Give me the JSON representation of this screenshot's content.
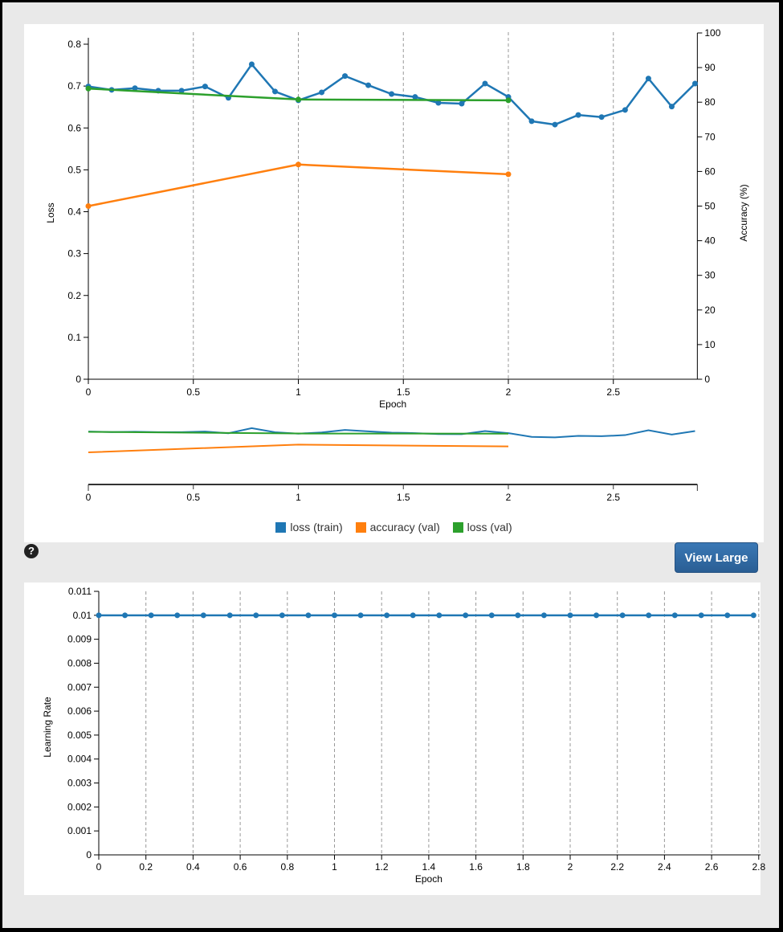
{
  "help_icon": "question-circle-icon",
  "view_large_label": "View Large",
  "colors": {
    "loss_train": "#1f77b4",
    "accuracy_val": "#ff7f0e",
    "loss_val": "#2ca02c"
  },
  "legend": [
    "loss (train)",
    "accuracy (val)",
    "loss (val)"
  ],
  "chart_data": [
    {
      "type": "line",
      "xlabel": "Epoch",
      "ylabel": "Loss",
      "y2label": "Accuracy (%)",
      "xlim": [
        0,
        2.9
      ],
      "ylim": [
        0,
        0.8
      ],
      "y2lim": [
        0,
        100
      ],
      "xticks": [
        "0",
        "0.5",
        "1",
        "1.5",
        "2",
        "2.5"
      ],
      "yticks": [
        "0",
        "0.1",
        "0.2",
        "0.3",
        "0.4",
        "0.5",
        "0.6",
        "0.7",
        "0.8"
      ],
      "y2ticks": [
        "0",
        "10",
        "20",
        "30",
        "40",
        "50",
        "60",
        "70",
        "80",
        "90",
        "100"
      ],
      "grid": "vertical dashed",
      "legend_position": "bottom",
      "series": [
        {
          "name": "loss (train)",
          "axis": "left",
          "x": [
            0,
            0.111,
            0.222,
            0.333,
            0.444,
            0.556,
            0.667,
            0.778,
            0.889,
            1,
            1.111,
            1.222,
            1.333,
            1.444,
            1.556,
            1.667,
            1.778,
            1.889,
            2,
            2.111,
            2.222,
            2.333,
            2.444,
            2.556,
            2.667,
            2.778,
            2.889
          ],
          "y": [
            0.699,
            0.691,
            0.695,
            0.689,
            0.689,
            0.699,
            0.672,
            0.752,
            0.687,
            0.666,
            0.685,
            0.724,
            0.702,
            0.681,
            0.674,
            0.66,
            0.658,
            0.706,
            0.674,
            0.616,
            0.608,
            0.631,
            0.626,
            0.643,
            0.718,
            0.651,
            0.706
          ]
        },
        {
          "name": "accuracy (val)",
          "axis": "right",
          "x": [
            0,
            1,
            2
          ],
          "y": [
            50,
            62,
            59.2
          ]
        },
        {
          "name": "loss (val)",
          "axis": "left",
          "x": [
            0,
            1,
            2
          ],
          "y": [
            0.694,
            0.668,
            0.666
          ]
        }
      ],
      "context_xticks": [
        "0",
        "0.5",
        "1",
        "1.5",
        "2",
        "2.5"
      ]
    },
    {
      "type": "line",
      "xlabel": "Epoch",
      "ylabel": "Learning Rate",
      "xlim": [
        0,
        2.8
      ],
      "ylim": [
        0,
        0.011
      ],
      "xticks": [
        "0",
        "0.2",
        "0.4",
        "0.6",
        "0.8",
        "1",
        "1.2",
        "1.4",
        "1.6",
        "1.8",
        "2",
        "2.2",
        "2.4",
        "2.6",
        "2.8"
      ],
      "yticks": [
        "0",
        "0.001",
        "0.002",
        "0.003",
        "0.004",
        "0.005",
        "0.006",
        "0.007",
        "0.008",
        "0.009",
        "0.01",
        "0.011"
      ],
      "grid": "vertical dashed",
      "series": [
        {
          "x": [
            0,
            0.111,
            0.222,
            0.333,
            0.444,
            0.556,
            0.667,
            0.778,
            0.889,
            1,
            1.111,
            1.222,
            1.333,
            1.444,
            1.556,
            1.667,
            1.778,
            1.889,
            2,
            2.111,
            2.222,
            2.333,
            2.444,
            2.556,
            2.667,
            2.778
          ],
          "y": [
            0.01,
            0.01,
            0.01,
            0.01,
            0.01,
            0.01,
            0.01,
            0.01,
            0.01,
            0.01,
            0.01,
            0.01,
            0.01,
            0.01,
            0.01,
            0.01,
            0.01,
            0.01,
            0.01,
            0.01,
            0.01,
            0.01,
            0.01,
            0.01,
            0.01,
            0.01
          ]
        }
      ]
    }
  ]
}
